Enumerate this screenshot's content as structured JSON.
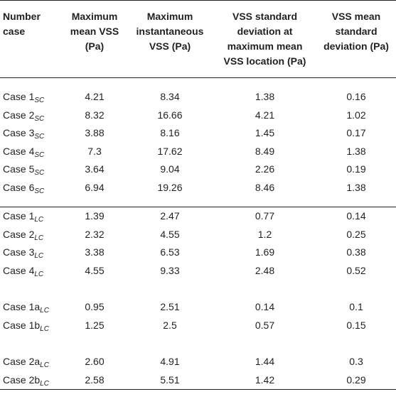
{
  "headers": [
    "Number case",
    "Maximum mean VSS (Pa)",
    "Maximum instantaneous VSS (Pa)",
    "VSS standard deviation at maximum mean VSS location (Pa)",
    "VSS mean standard deviation (Pa)"
  ],
  "header_lines": {
    "h0": [
      "Number",
      "case"
    ],
    "h1": [
      "Maximum",
      "mean VSS",
      "(Pa)"
    ],
    "h2": [
      "Maximum",
      "instantaneous",
      "VSS (Pa)"
    ],
    "h3": [
      "VSS standard",
      "deviation at",
      "maximum mean",
      "VSS location (Pa)"
    ],
    "h4": [
      "VSS mean",
      "standard",
      "deviation (Pa)"
    ]
  },
  "groups": [
    {
      "rows": [
        {
          "case": "Case 1",
          "sub": "SC",
          "mean": "4.21",
          "inst": "8.34",
          "sd_loc": "1.38",
          "mean_sd": "0.16"
        },
        {
          "case": "Case 2",
          "sub": "SC",
          "mean": "8.32",
          "inst": "16.66",
          "sd_loc": "4.21",
          "mean_sd": "1.02"
        },
        {
          "case": "Case 3",
          "sub": "SC",
          "mean": "3.88",
          "inst": "8.16",
          "sd_loc": "1.45",
          "mean_sd": "0.17"
        },
        {
          "case": "Case 4",
          "sub": "SC",
          "mean": "7.3",
          "inst": "17.62",
          "sd_loc": "8.49",
          "mean_sd": "1.38"
        },
        {
          "case": "Case 5",
          "sub": "SC",
          "mean": "3.64",
          "inst": "9.04",
          "sd_loc": "2.26",
          "mean_sd": "0.19"
        },
        {
          "case": "Case 6",
          "sub": "SC",
          "mean": "6.94",
          "inst": "19.26",
          "sd_loc": "8.46",
          "mean_sd": "1.38"
        }
      ]
    },
    {
      "rows": [
        {
          "case": "Case 1",
          "sub": "LC",
          "mean": "1.39",
          "inst": "2.47",
          "sd_loc": "0.77",
          "mean_sd": "0.14"
        },
        {
          "case": "Case 2",
          "sub": "LC",
          "mean": "2.32",
          "inst": "4.55",
          "sd_loc": "1.2",
          "mean_sd": "0.25"
        },
        {
          "case": "Case 3",
          "sub": "LC",
          "mean": "3.38",
          "inst": "6.53",
          "sd_loc": "1.69",
          "mean_sd": "0.38"
        },
        {
          "case": "Case 4",
          "sub": "LC",
          "mean": "4.55",
          "inst": "9.33",
          "sd_loc": "2.48",
          "mean_sd": "0.52"
        }
      ]
    },
    {
      "rows": [
        {
          "case": "Case 1a",
          "sub": "LC",
          "mean": "0.95",
          "inst": "2.51",
          "sd_loc": "0.14",
          "mean_sd": "0.1"
        },
        {
          "case": "Case 1b",
          "sub": "LC",
          "mean": "1.25",
          "inst": "2.5",
          "sd_loc": "0.57",
          "mean_sd": "0.15"
        }
      ]
    },
    {
      "rows": [
        {
          "case": "Case 2a",
          "sub": "LC",
          "mean": "2.60",
          "inst": "4.91",
          "sd_loc": "1.44",
          "mean_sd": "0.3"
        },
        {
          "case": "Case 2b",
          "sub": "LC",
          "mean": "2.58",
          "inst": "5.51",
          "sd_loc": "1.42",
          "mean_sd": "0.29"
        }
      ]
    }
  ]
}
